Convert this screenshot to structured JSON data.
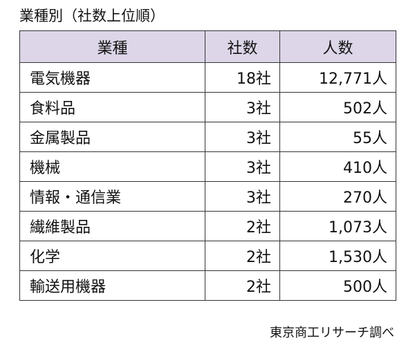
{
  "title": "業種別（社数上位順）",
  "table": {
    "headers": [
      "業種",
      "社数",
      "人数"
    ],
    "rows": [
      {
        "industry": "電気機器",
        "companies": "18社",
        "people": "12,771人"
      },
      {
        "industry": "食料品",
        "companies": "3社",
        "people": "502人"
      },
      {
        "industry": "金属製品",
        "companies": "3社",
        "people": "55人"
      },
      {
        "industry": "機械",
        "companies": "3社",
        "people": "410人"
      },
      {
        "industry": "情報・通信業",
        "companies": "3社",
        "people": "270人"
      },
      {
        "industry": "繊維製品",
        "companies": "2社",
        "people": "1,073人"
      },
      {
        "industry": "化学",
        "companies": "2社",
        "people": "1,530人"
      },
      {
        "industry": "輸送用機器",
        "companies": "2社",
        "people": "500人"
      }
    ]
  },
  "source": "東京商工リサーチ調べ",
  "colors": {
    "header_background": "#ddd6e8",
    "border": "#333333"
  }
}
